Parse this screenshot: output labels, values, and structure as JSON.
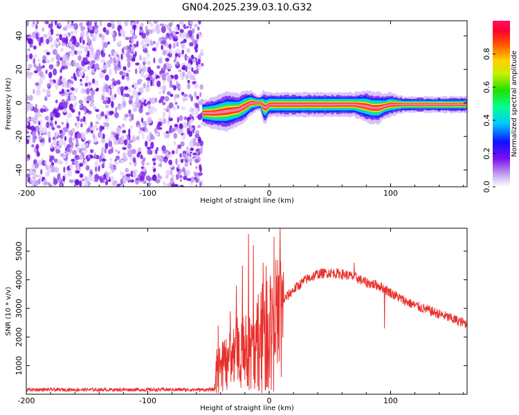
{
  "title": "GN04.2025.239.03.10.G32",
  "chart_data": [
    {
      "type": "heatmap",
      "name": "spectrogram",
      "xlabel": "Height of straight line (km)",
      "ylabel": "Frequency (Hz)",
      "xlim": [
        -200,
        163
      ],
      "ylim": [
        -50,
        49
      ],
      "x_ticks": [
        -200,
        -100,
        0,
        100
      ],
      "y_ticks": [
        -40,
        -20,
        0,
        20,
        40
      ],
      "noise_region_x": [
        -200,
        -55
      ],
      "signal_track": {
        "x": [
          -55,
          -45,
          -35,
          -25,
          -20,
          -15,
          -10,
          -7,
          -5,
          -3,
          0,
          5,
          15,
          30,
          50,
          70,
          80,
          85,
          90,
          95,
          100,
          110,
          130,
          163
        ],
        "freq": [
          -6,
          -6,
          -5,
          -4,
          -2,
          0,
          0,
          0,
          -2,
          -3,
          -1,
          -1,
          -1,
          -1,
          -1,
          -1,
          -2,
          -3,
          -3,
          -2,
          -1,
          -1,
          -1,
          -1
        ],
        "width": [
          3,
          4,
          5,
          4,
          4,
          3,
          2,
          2,
          4,
          4,
          3,
          3,
          3,
          3,
          3,
          3,
          4,
          4,
          4,
          3,
          3,
          2,
          2,
          2
        ]
      },
      "colorbar": {
        "label": "Normalized spectral amplitude",
        "ticks": [
          "0.0",
          "0.2",
          "0.4",
          "0.6",
          "0.8"
        ],
        "range": [
          0,
          1
        ]
      }
    },
    {
      "type": "line",
      "name": "snr",
      "xlabel": "Height of straight line (km)",
      "ylabel": "SNR (10 * v/v)",
      "xlim": [
        -200,
        163
      ],
      "ylim": [
        0,
        5800
      ],
      "x_ticks": [
        -200,
        -100,
        0,
        100
      ],
      "y_ticks": [
        1000,
        2000,
        3000,
        4000,
        5000
      ],
      "series_color": "#e8302c",
      "envelope": {
        "x": [
          -200,
          -45,
          -44,
          -35,
          -25,
          -15,
          -10,
          -5,
          0,
          10,
          20,
          30,
          40,
          50,
          60,
          70,
          80,
          90,
          100,
          110,
          120,
          140,
          163
        ],
        "y": [
          160,
          160,
          1000,
          1300,
          1800,
          1800,
          2400,
          2900,
          2900,
          3200,
          3650,
          4000,
          4200,
          4250,
          4200,
          4100,
          3900,
          3800,
          3550,
          3300,
          3100,
          2800,
          2450
        ]
      },
      "spikes": [
        {
          "x": -42,
          "y": 2400
        },
        {
          "x": -32,
          "y": 2900
        },
        {
          "x": -27,
          "y": 3800
        },
        {
          "x": -22,
          "y": 4500
        },
        {
          "x": -17,
          "y": 5600
        },
        {
          "x": -13,
          "y": 5200
        },
        {
          "x": -5,
          "y": 4600
        },
        {
          "x": 4,
          "y": 5500
        },
        {
          "x": 9,
          "y": 5800
        },
        {
          "x": 10,
          "y": 600
        },
        {
          "x": -15,
          "y": 200
        },
        {
          "x": -20,
          "y": 500
        },
        {
          "x": 95,
          "y": 2300
        },
        {
          "x": 70,
          "y": 4600
        }
      ]
    }
  ]
}
